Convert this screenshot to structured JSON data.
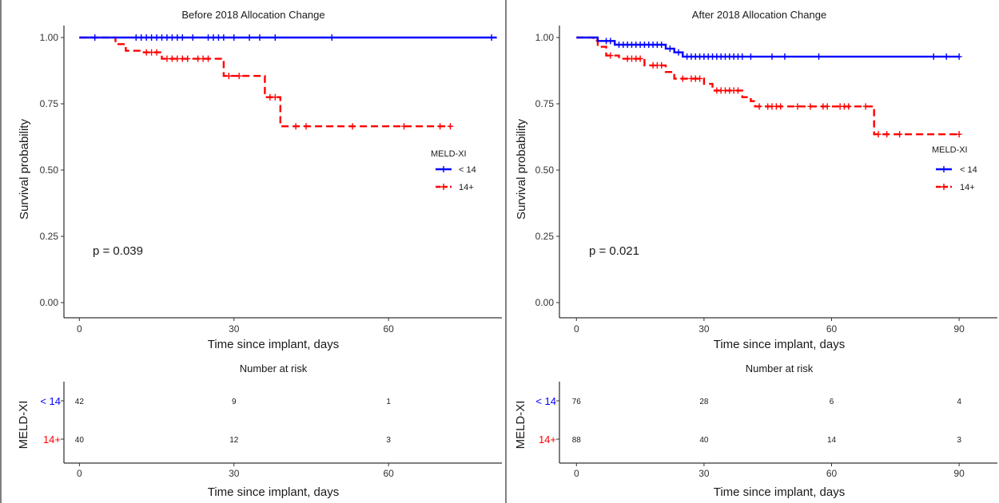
{
  "colors": {
    "low": "#0000ff",
    "high": "#ff0000",
    "axis": "#000000",
    "text": "#1a1a1a"
  },
  "chart_data": [
    {
      "type": "line",
      "title": "Before 2018 Allocation Change",
      "xlabel": "Time since implant, days",
      "ylabel": "Survival probability",
      "xlim": [
        -3,
        82
      ],
      "ylim": [
        0,
        1
      ],
      "xticks": [
        0,
        30,
        60
      ],
      "yticks": [
        0.0,
        0.25,
        0.5,
        0.75,
        1.0
      ],
      "ytick_labels": [
        "0.00",
        "0.25",
        "0.50",
        "0.75",
        "1.00"
      ],
      "pvalue": "p = 0.039",
      "legend": {
        "title": "MELD-XI",
        "position": "right",
        "labels": [
          "< 14",
          "14+"
        ]
      },
      "series": [
        {
          "name": "< 14",
          "color_key": "low",
          "dash": "solid",
          "steps": [
            [
              0,
              1.0
            ],
            [
              81,
              1.0
            ]
          ],
          "censor": [
            3,
            11,
            12,
            13,
            14,
            15,
            16,
            17,
            18,
            19,
            20,
            22,
            25,
            26,
            27,
            28,
            30,
            33,
            35,
            38,
            49,
            80
          ]
        },
        {
          "name": "14+",
          "color_key": "high",
          "dash": "dashed",
          "steps": [
            [
              0,
              1.0
            ],
            [
              7,
              1.0
            ],
            [
              7,
              0.975
            ],
            [
              9,
              0.975
            ],
            [
              9,
              0.95
            ],
            [
              12,
              0.95
            ],
            [
              12,
              0.944
            ],
            [
              16,
              0.944
            ],
            [
              16,
              0.92
            ],
            [
              28,
              0.92
            ],
            [
              28,
              0.855
            ],
            [
              36,
              0.855
            ],
            [
              36,
              0.775
            ],
            [
              39,
              0.775
            ],
            [
              39,
              0.665
            ],
            [
              72,
              0.665
            ]
          ],
          "censor": [
            13,
            14,
            15,
            17,
            18,
            19,
            20,
            21,
            23,
            24,
            25,
            29,
            31,
            37,
            38,
            42,
            44,
            53,
            63,
            70,
            72
          ]
        }
      ],
      "risk_table": {
        "title": "Number at risk",
        "ylabel": "MELD-XI",
        "times": [
          0,
          30,
          60
        ],
        "rows": [
          {
            "label": "< 14",
            "color_key": "low",
            "counts": [
              "42",
              "9",
              "1"
            ]
          },
          {
            "label": "14+",
            "color_key": "high",
            "counts": [
              "40",
              "12",
              "3"
            ]
          }
        ],
        "xlabel": "Time since implant, days"
      }
    },
    {
      "type": "line",
      "title": "After 2018 Allocation Change",
      "xlabel": "Time since implant, days",
      "ylabel": "Survival probability",
      "xlim": [
        -4,
        99
      ],
      "ylim": [
        0,
        1
      ],
      "xticks": [
        0,
        30,
        60,
        90
      ],
      "yticks": [
        0.0,
        0.25,
        0.5,
        0.75,
        1.0
      ],
      "ytick_labels": [
        "0.00",
        "0.25",
        "0.50",
        "0.75",
        "1.00"
      ],
      "pvalue": "p = 0.021",
      "legend": {
        "title": "MELD-XI",
        "position": "right",
        "labels": [
          "< 14",
          "14+"
        ]
      },
      "series": [
        {
          "name": "< 14",
          "color_key": "low",
          "dash": "solid",
          "steps": [
            [
              0,
              1.0
            ],
            [
              5,
              1.0
            ],
            [
              5,
              0.987
            ],
            [
              9,
              0.987
            ],
            [
              9,
              0.973
            ],
            [
              21,
              0.973
            ],
            [
              21,
              0.958
            ],
            [
              23,
              0.958
            ],
            [
              23,
              0.944
            ],
            [
              25,
              0.944
            ],
            [
              25,
              0.928
            ],
            [
              90,
              0.928
            ]
          ],
          "censor": [
            7,
            8,
            10,
            11,
            12,
            13,
            14,
            15,
            16,
            17,
            18,
            19,
            20,
            22,
            24,
            26,
            27,
            28,
            29,
            30,
            31,
            32,
            33,
            34,
            35,
            36,
            37,
            38,
            39,
            41,
            46,
            49,
            57,
            84,
            87,
            90
          ]
        },
        {
          "name": "14+",
          "color_key": "high",
          "dash": "dashed",
          "steps": [
            [
              0,
              1.0
            ],
            [
              4,
              1.0
            ],
            [
              4,
              0.989
            ],
            [
              5,
              0.989
            ],
            [
              5,
              0.965
            ],
            [
              7,
              0.965
            ],
            [
              7,
              0.932
            ],
            [
              10,
              0.932
            ],
            [
              10,
              0.92
            ],
            [
              16,
              0.92
            ],
            [
              16,
              0.895
            ],
            [
              21,
              0.895
            ],
            [
              21,
              0.87
            ],
            [
              23,
              0.87
            ],
            [
              23,
              0.845
            ],
            [
              30,
              0.845
            ],
            [
              30,
              0.825
            ],
            [
              32,
              0.825
            ],
            [
              32,
              0.8
            ],
            [
              39,
              0.8
            ],
            [
              39,
              0.775
            ],
            [
              41,
              0.775
            ],
            [
              41,
              0.76
            ],
            [
              42,
              0.76
            ],
            [
              42,
              0.74
            ],
            [
              70,
              0.74
            ],
            [
              70,
              0.635
            ],
            [
              90,
              0.635
            ]
          ],
          "censor": [
            8,
            12,
            13,
            14,
            15,
            18,
            19,
            20,
            25,
            27,
            28,
            29,
            33,
            34,
            35,
            36,
            37,
            38,
            43,
            45,
            46,
            47,
            48,
            52,
            55,
            58,
            59,
            62,
            63,
            64,
            68,
            71,
            73,
            76,
            90
          ]
        }
      ],
      "risk_table": {
        "title": "Number at risk",
        "ylabel": "MELD-XI",
        "times": [
          0,
          30,
          60,
          90
        ],
        "rows": [
          {
            "label": "< 14",
            "color_key": "low",
            "counts": [
              "76",
              "28",
              "6",
              "4"
            ]
          },
          {
            "label": "14+",
            "color_key": "high",
            "counts": [
              "88",
              "40",
              "14",
              "3"
            ]
          }
        ],
        "xlabel": "Time since implant, days"
      }
    }
  ]
}
